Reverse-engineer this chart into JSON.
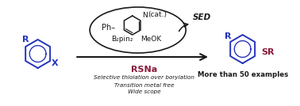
{
  "bg_color": "#ffffff",
  "blue_color": "#2233bb",
  "dark_red_color": "#8b1a3a",
  "black_color": "#1a1a1a",
  "rsna_text": "RSNa",
  "sed_text": "SED",
  "ph_text": "Ph",
  "n_text": "N",
  "cat_text": "(cat.)",
  "b2pin2_text": "B₂pin₂",
  "meok_text": "MeOK",
  "condition_line1": "Selective thiolation over borylation",
  "condition_line2": "Transition metal free",
  "condition_line3": "Wide scope",
  "product_label": "More than 50 examples",
  "reactant_R_label": "R",
  "reactant_X_label": "X",
  "product_R_label": "R",
  "product_SR_label": "SR",
  "figsize": [
    3.78,
    1.34
  ],
  "dpi": 100
}
